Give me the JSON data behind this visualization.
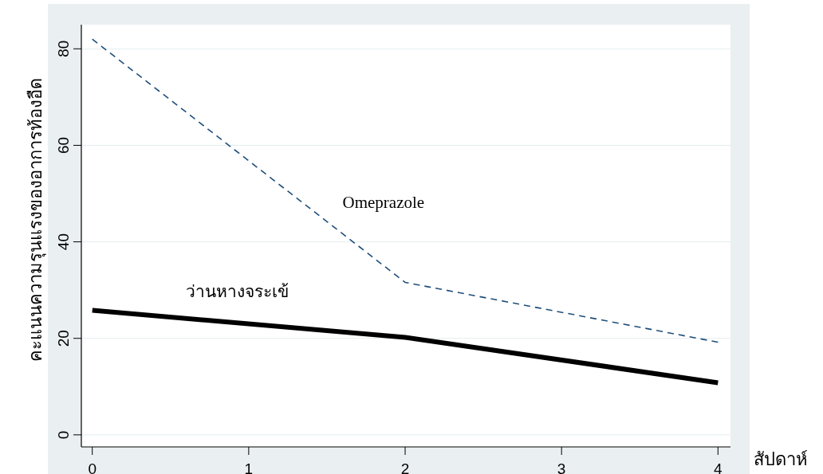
{
  "chart_data": {
    "type": "line",
    "ylabel": "คะแนนความรุนแรงของอาการท้องอืด",
    "xlabel": "สัปดาห์",
    "x": [
      0,
      2,
      4
    ],
    "xlim": [
      -0.07,
      4.08
    ],
    "xticks": [
      0,
      1,
      2,
      3,
      4
    ],
    "ylim": [
      -2.5,
      85
    ],
    "yticks": [
      0,
      20,
      40,
      60,
      80
    ],
    "grid": "y",
    "series": [
      {
        "name": "Omeprazole",
        "color": "#1f4e79",
        "line_style": "dashed",
        "values": [
          82,
          31.6,
          19.2
        ]
      },
      {
        "name": "ว่านหางจระเข้",
        "color": "#000000",
        "line_style": "solid",
        "values": [
          25.8,
          20.2,
          10.8
        ]
      }
    ]
  }
}
